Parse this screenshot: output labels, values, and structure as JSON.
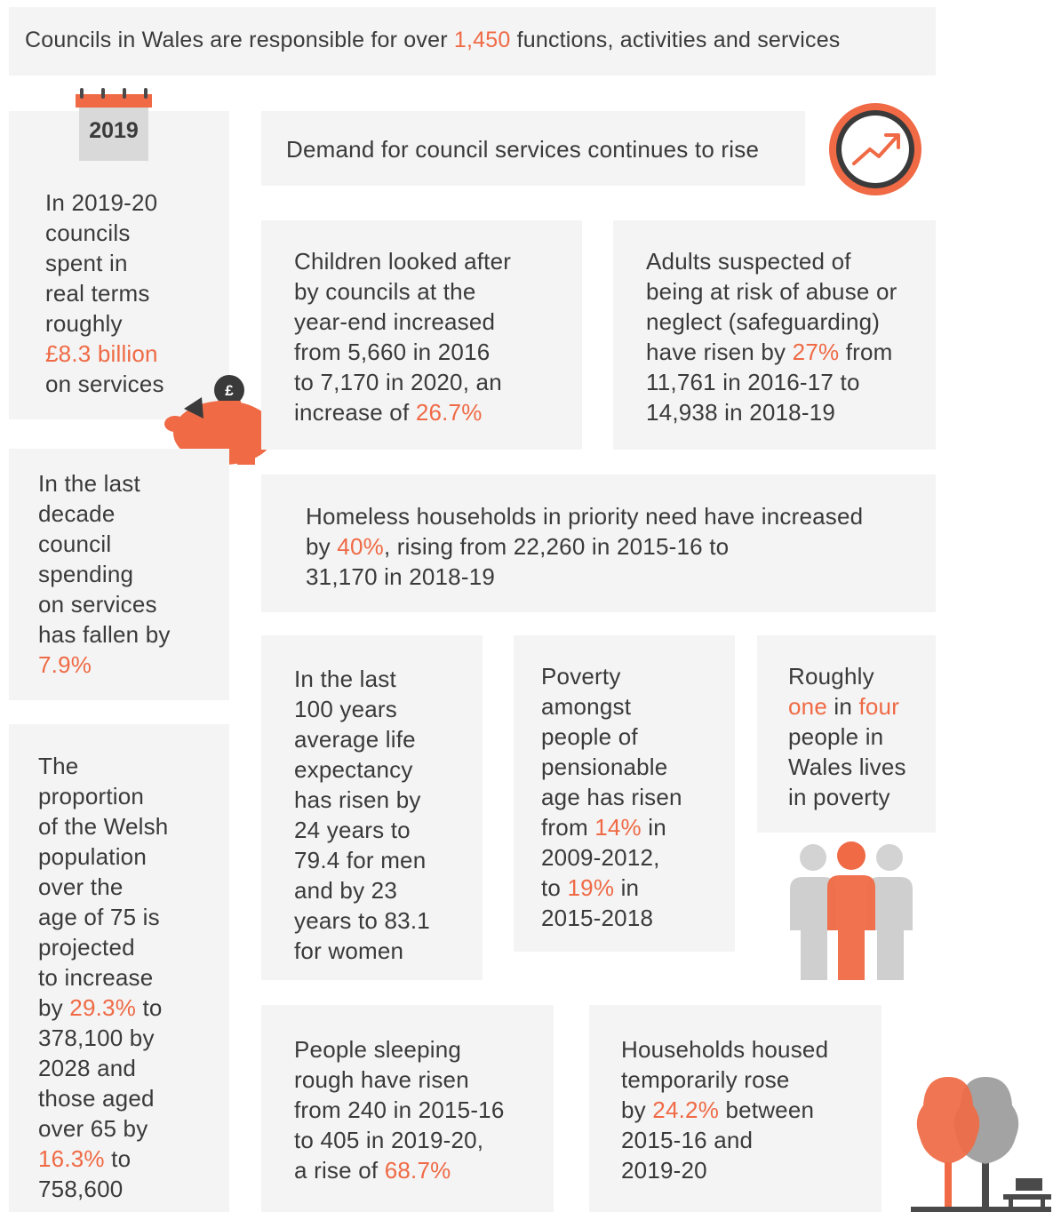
{
  "banner": {
    "pre": "Councils in Wales are responsible for over ",
    "highlight": "1,450",
    "post": " functions, activities and services"
  },
  "calendar": {
    "year": "2019"
  },
  "demand": {
    "title": "Demand for council services continues to rise"
  },
  "spent": {
    "l1": "In 2019-20",
    "l2": "councils",
    "l3": "spent in",
    "l4": "real terms",
    "l5": "roughly",
    "hl": "£8.3 billion",
    "l6": "on services"
  },
  "piggy": {
    "symbol": "£"
  },
  "children": {
    "l1": "Children looked after",
    "l2": "by councils at the",
    "l3": "year-end increased",
    "l4": "from 5,660 in 2016",
    "l5": "to 7,170 in 2020, an",
    "l6pre": "increase of ",
    "hl": "26.7%"
  },
  "adults": {
    "l1": "Adults suspected of",
    "l2": "being at risk of abuse or",
    "l3": "neglect (safeguarding)",
    "l4pre": "have risen by ",
    "hl": "27%",
    "l4post": " from",
    "l5": "11,761 in 2016-17 to",
    "l6": "14,938 in 2018-19"
  },
  "decade": {
    "l1": "In the last",
    "l2": "decade",
    "l3": "council",
    "l4": "spending",
    "l5": "on services",
    "l6": "has fallen by",
    "hl": "7.9%"
  },
  "homeless": {
    "l1": "Homeless households in priority need have increased",
    "l2pre": "by ",
    "hl": "40%",
    "l2post": ", rising from 22,260 in 2015-16 to",
    "l3": "31,170 in 2018-19"
  },
  "over75": {
    "l1": "The",
    "l2": "proportion",
    "l3": "of the Welsh",
    "l4": "population",
    "l5": "over the",
    "l6": "age of 75 is",
    "l7": "projected",
    "l8": "to increase",
    "l9pre": "by ",
    "hl1": "29.3%",
    "l9post": " to",
    "l10": "378,100 by",
    "l11": "2028 and",
    "l12": "those aged",
    "l13": "over 65 by",
    "hl2": "16.3%",
    "l14post": " to",
    "l15": "758,600"
  },
  "life": {
    "l1": "In the last",
    "l2": "100 years",
    "l3": "average life",
    "l4": "expectancy",
    "l5": "has risen by",
    "l6": "24 years to",
    "l7": "79.4 for men",
    "l8": "and by 23",
    "l9": "years to 83.1",
    "l10": "for women"
  },
  "poverty_pension": {
    "l1": "Poverty",
    "l2": "amongst",
    "l3": "people of",
    "l4": "pensionable",
    "l5": "age has risen",
    "l6pre": "from ",
    "hl1": "14%",
    "l6post": " in",
    "l7": "2009-2012,",
    "l8pre": "to ",
    "hl2": "19%",
    "l8post": " in",
    "l9": "2015-2018"
  },
  "poverty_wales": {
    "l1": "Roughly",
    "hl1": "one",
    "mid": " in ",
    "hl2": "four",
    "l3": "people in",
    "l4": "Wales lives",
    "l5": "in poverty"
  },
  "rough": {
    "l1": "People sleeping",
    "l2": "rough have risen",
    "l3": "from 240 in 2015-16",
    "l4": "to 405 in 2019-20,",
    "l5pre": "a rise of ",
    "hl": "68.7%"
  },
  "temporary": {
    "l1": "Households housed",
    "l2": "temporarily rose",
    "l3pre": "by ",
    "hl": "24.2%",
    "l3post": " between",
    "l4": "2015-16 and",
    "l5": "2019-20"
  },
  "colors": {
    "accent": "#ef6a45",
    "box": "#f4f4f4",
    "text": "#3a3a3a",
    "grey": "#c9c9c9"
  },
  "icons": [
    "calendar-icon",
    "trend-up-icon",
    "piggy-bank-icon",
    "people-icon",
    "trees-bench-icon"
  ]
}
